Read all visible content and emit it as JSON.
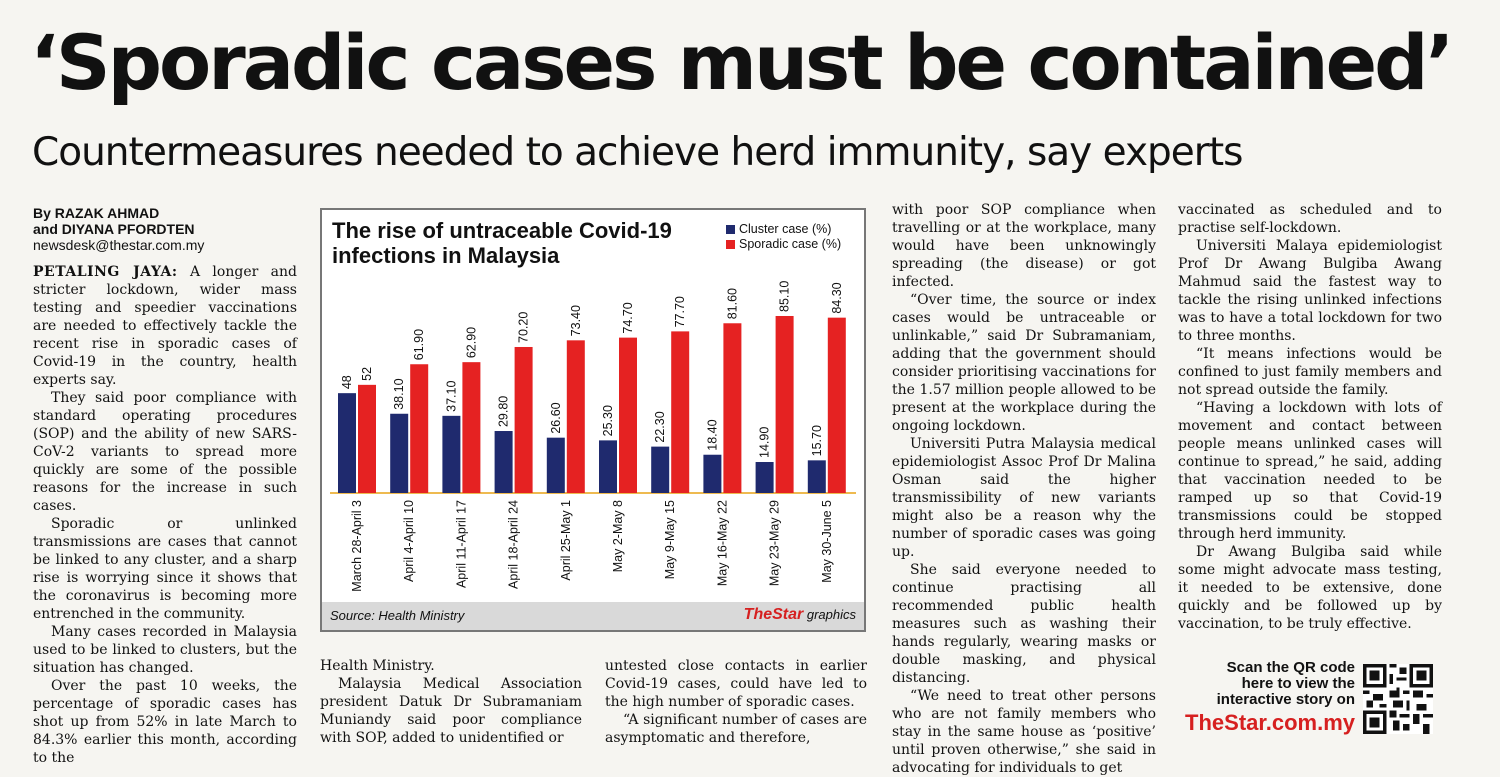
{
  "headline": "‘Sporadic cases must be contained’",
  "subheadline": "Countermeasures needed to achieve herd immunity, say experts",
  "byline": {
    "line1": "By RAZAK AHMAD",
    "line2": "and DIYANA PFORDTEN",
    "email": "newsdesk@thestar.com.my"
  },
  "dateline": "PETALING JAYA:",
  "col1": {
    "p1": " A longer and stricter lockdown, wider mass testing and speedier vaccinations are needed to effectively tackle the recent rise in sporadic cases of Covid-19 in the country, health experts say.",
    "p2": "They said poor compliance with standard operating procedures (SOP) and the ability of new SARS-CoV-2 variants to spread more quickly are some of the possible reasons for the increase in such cases.",
    "p3": "Sporadic or unlinked transmissions are cases that cannot be linked to any cluster, and a sharp rise is worrying since it shows that the coronavirus is becoming more entrenched in the community.",
    "p4": "Many cases recorded in Malaysia used to be linked to clusters, but the situation has changed.",
    "p5": "Over the past 10 weeks, the percentage of sporadic cases has shot up from 52% in late March to 84.3% earlier this month, according to the"
  },
  "col2": {
    "p1": "Health Ministry.",
    "p2": "Malaysia Medical Association president Datuk Dr Subramaniam Muniandy said poor compliance with SOP, added to unidentified or"
  },
  "col3": {
    "p1": "untested close contacts in earlier Covid-19 cases, could have led to the high number of sporadic cases.",
    "p2": "“A significant number of cases are asymptomatic and therefore,"
  },
  "col4": {
    "p1": "with poor SOP compliance when travelling or at the workplace, many would have been unknowingly spreading (the disease) or got infected.",
    "p2": "“Over time, the source or index cases would be untraceable or unlinkable,” said Dr Subramaniam, adding that the government should consider prioritising vaccinations for the 1.57 million people allowed to be present at the workplace during the ongoing lockdown.",
    "p3": "Universiti Putra Malaysia medical epidemiologist Assoc Prof Dr Malina Osman said the higher transmissibility of new variants might also be a reason why the number of sporadic cases was going up.",
    "p4": "She said everyone needed to continue practising all recommended public health measures such as washing their hands regularly, wearing masks or double masking, and physical distancing.",
    "p5": "“We need to treat other persons who are not family members who stay in the same house as ‘positive’ until proven otherwise,” she said in advocating for individuals to get"
  },
  "col5": {
    "p1": "vaccinated as scheduled and to practise self-lockdown.",
    "p2": "Universiti Malaya epidemiologist Prof Dr Awang Bulgiba Awang Mahmud said the fastest way to tackle the rising unlinked infections was to have a total lockdown for two to three months.",
    "p3": "“It means infections would be confined to just family members and not spread outside the family.",
    "p4": "“Having a lockdown with lots of movement and contact between people means unlinked cases will continue to spread,” he said, adding that vaccination needed to be ramped up so that Covid-19 transmissions could be stopped through herd immunity.",
    "p5": "Dr Awang Bulgiba said while some might advocate mass testing, it needed to be extensive, done quickly and be followed up by vaccination, to be truly effective."
  },
  "promo": {
    "line1": "Scan the QR code",
    "line2": "here to view the",
    "line3": "interactive story on",
    "site": "TheStar.com.my"
  },
  "chart_source": "Source: Health Ministry",
  "chart_brand_logo": "TheStar",
  "chart_brand_suffix": " graphics",
  "chart_data": {
    "type": "bar",
    "title": "The rise of untraceable Covid-19 infections in Malaysia",
    "categories": [
      "March 28-April 3",
      "April 4-April 10",
      "April 11-April 17",
      "April 18-April 24",
      "April 25-May 1",
      "May 2-May 8",
      "May 9-May 15",
      "May 16-May 22",
      "May 23-May 29",
      "May 30-June 5"
    ],
    "series": [
      {
        "name": "Cluster case (%)",
        "color": "#1f2a6e",
        "values": [
          48,
          38.1,
          37.1,
          29.8,
          26.6,
          25.3,
          22.3,
          18.4,
          14.9,
          15.7
        ],
        "labels": [
          "48",
          "38.10",
          "37.10",
          "29.80",
          "26.60",
          "25.30",
          "22.30",
          "18.40",
          "14.90",
          "15.70"
        ]
      },
      {
        "name": "Sporadic case (%)",
        "color": "#e52222",
        "values": [
          52,
          61.9,
          62.9,
          70.2,
          73.4,
          74.7,
          77.7,
          81.6,
          85.1,
          84.3
        ],
        "labels": [
          "52",
          "61.90",
          "62.90",
          "70.20",
          "73.40",
          "74.70",
          "77.70",
          "81.60",
          "85.10",
          "84.30"
        ]
      }
    ],
    "ylim": [
      0,
      100
    ],
    "legend": "top-right",
    "grid": false
  }
}
